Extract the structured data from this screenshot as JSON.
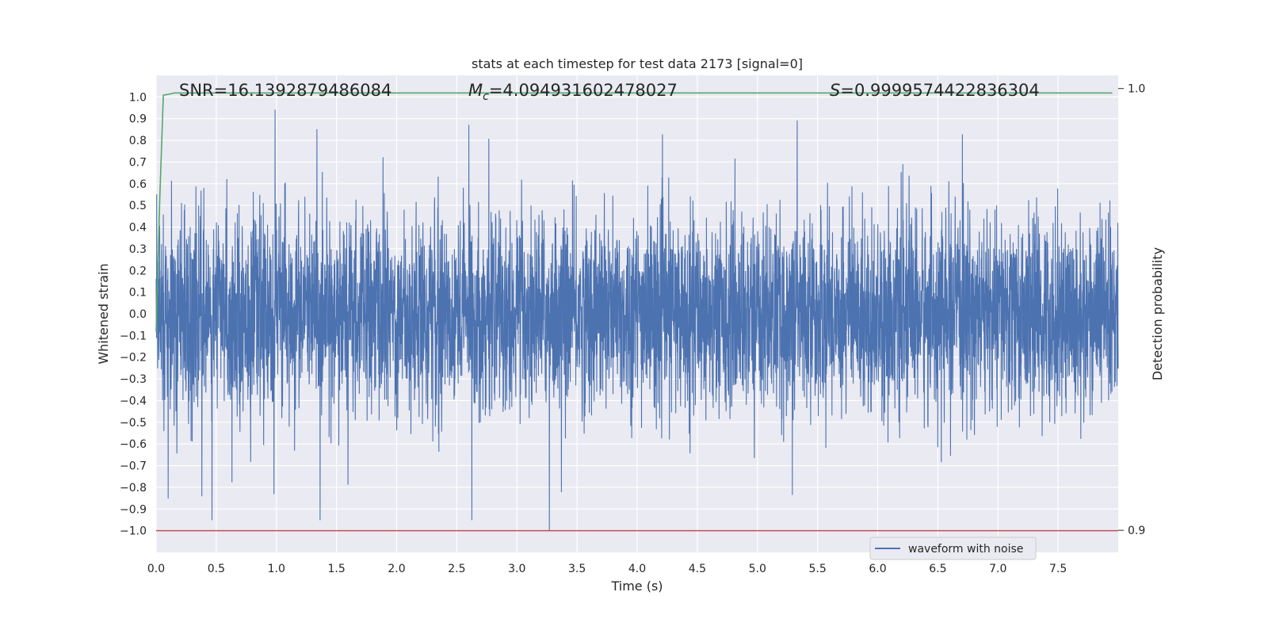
{
  "chart_data": {
    "type": "line",
    "title": "stats at each timestep for test data 2173 [signal=0]",
    "xlabel": "Time (s)",
    "ylabel": "Whitened strain",
    "y2label": "Detection probability",
    "xlim": [
      0.0,
      8.0
    ],
    "ylim": [
      -1.1,
      1.1
    ],
    "y2lim": [
      0.895,
      1.003
    ],
    "xticks": [
      "0.0",
      "0.5",
      "1.0",
      "1.5",
      "2.0",
      "2.5",
      "3.0",
      "3.5",
      "4.0",
      "4.5",
      "5.0",
      "5.5",
      "6.0",
      "6.5",
      "7.0",
      "7.5"
    ],
    "yticks": [
      "1.0",
      "0.9",
      "0.8",
      "0.7",
      "0.6",
      "0.5",
      "0.4",
      "0.3",
      "0.2",
      "0.1",
      "0.0",
      "-0.1",
      "-0.2",
      "-0.3",
      "-0.4",
      "-0.5",
      "-0.6",
      "-0.7",
      "-0.8",
      "-0.9",
      "-1.0"
    ],
    "y2ticks": [
      "1.0",
      "0.9"
    ],
    "grid": true,
    "legend_position": "bottom-right",
    "annotations": {
      "snr": "SNR=16.1392879486084",
      "mc_symbol": "M",
      "mc_sub": "c",
      "mc_value": "=4.094931602478027",
      "s_symbol": "S",
      "s_value": "=0.9999574422836304"
    },
    "series": [
      {
        "name": "waveform with noise",
        "color": "#4c72b0",
        "description_kind": "noise",
        "x_range": [
          0.0,
          8.0
        ],
        "typical_amplitude": 0.3,
        "peaks": [
          {
            "x": 0.99,
            "y": 0.94
          },
          {
            "x": 5.33,
            "y": 0.89
          },
          {
            "x": 2.6,
            "y": 0.87
          },
          {
            "x": 3.27,
            "y": -1.0
          },
          {
            "x": 0.1,
            "y": -0.85
          },
          {
            "x": 0.38,
            "y": -0.84
          },
          {
            "x": 0.98,
            "y": -0.83
          }
        ]
      },
      {
        "color": "#55a868",
        "x": [
          0.0,
          0.03,
          0.06,
          0.1,
          0.15,
          0.3,
          7.95
        ],
        "y": [
          0.945,
          0.975,
          0.9985,
          0.9987,
          0.999,
          0.999,
          0.999
        ]
      },
      {
        "color": "#c44e52",
        "x": [
          0.0,
          8.0
        ],
        "y": [
          -1.0,
          -1.0
        ],
        "axis": "left"
      }
    ]
  }
}
